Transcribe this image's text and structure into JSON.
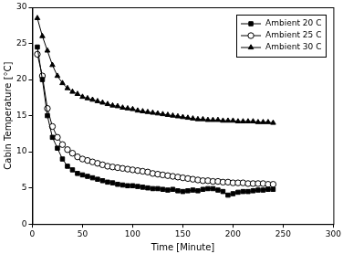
{
  "chart_data": {
    "type": "line",
    "x_label": "Time [Minute]",
    "y_label": "Cabin Temperature [°C]",
    "x": [
      5,
      10,
      15,
      20,
      25,
      30,
      35,
      40,
      45,
      50,
      55,
      60,
      65,
      70,
      75,
      80,
      85,
      90,
      95,
      100,
      105,
      110,
      115,
      120,
      125,
      130,
      135,
      140,
      145,
      150,
      155,
      160,
      165,
      170,
      175,
      180,
      185,
      190,
      195,
      200,
      205,
      210,
      215,
      220,
      225,
      230,
      235,
      240
    ],
    "series": [
      {
        "name": "Ambient 20 C",
        "color": "#000000",
        "marker": "square",
        "values": [
          24.5,
          20.0,
          15.0,
          12.0,
          10.5,
          9.0,
          8.0,
          7.5,
          7.0,
          6.8,
          6.6,
          6.4,
          6.2,
          6.0,
          5.8,
          5.7,
          5.5,
          5.4,
          5.3,
          5.3,
          5.2,
          5.1,
          5.0,
          4.9,
          4.9,
          4.8,
          4.7,
          4.8,
          4.6,
          4.5,
          4.6,
          4.7,
          4.6,
          4.8,
          4.9,
          4.9,
          4.7,
          4.5,
          4.0,
          4.2,
          4.4,
          4.5,
          4.5,
          4.6,
          4.7,
          4.7,
          4.8,
          4.8
        ]
      },
      {
        "name": "Ambient 25 C",
        "color": "#000000",
        "marker": "open_circle",
        "values": [
          23.5,
          20.5,
          16.0,
          13.5,
          12.0,
          11.0,
          10.3,
          9.8,
          9.3,
          9.0,
          8.8,
          8.6,
          8.4,
          8.2,
          8.0,
          7.9,
          7.8,
          7.7,
          7.6,
          7.5,
          7.4,
          7.3,
          7.2,
          7.0,
          6.9,
          6.8,
          6.7,
          6.6,
          6.5,
          6.4,
          6.3,
          6.2,
          6.1,
          6.0,
          6.0,
          5.9,
          5.9,
          5.8,
          5.8,
          5.7,
          5.7,
          5.7,
          5.6,
          5.6,
          5.6,
          5.6,
          5.5,
          5.5
        ]
      },
      {
        "name": "Ambient 30 C",
        "color": "#000000",
        "marker": "triangle",
        "values": [
          28.5,
          26.0,
          24.0,
          22.0,
          20.5,
          19.5,
          18.8,
          18.3,
          18.0,
          17.6,
          17.4,
          17.2,
          17.0,
          16.8,
          16.6,
          16.4,
          16.3,
          16.1,
          16.0,
          15.9,
          15.7,
          15.6,
          15.5,
          15.4,
          15.3,
          15.2,
          15.1,
          15.0,
          14.9,
          14.8,
          14.7,
          14.6,
          14.5,
          14.5,
          14.4,
          14.4,
          14.4,
          14.3,
          14.3,
          14.3,
          14.2,
          14.2,
          14.2,
          14.2,
          14.1,
          14.1,
          14.1,
          14.0
        ]
      }
    ],
    "xlim": [
      0,
      300
    ],
    "xticks": [
      0,
      50,
      100,
      150,
      200,
      250,
      300
    ],
    "ylim": [
      0,
      30
    ],
    "yticks": [
      0,
      5,
      10,
      15,
      20,
      25,
      30
    ],
    "grid": false,
    "legend": "upper right"
  }
}
